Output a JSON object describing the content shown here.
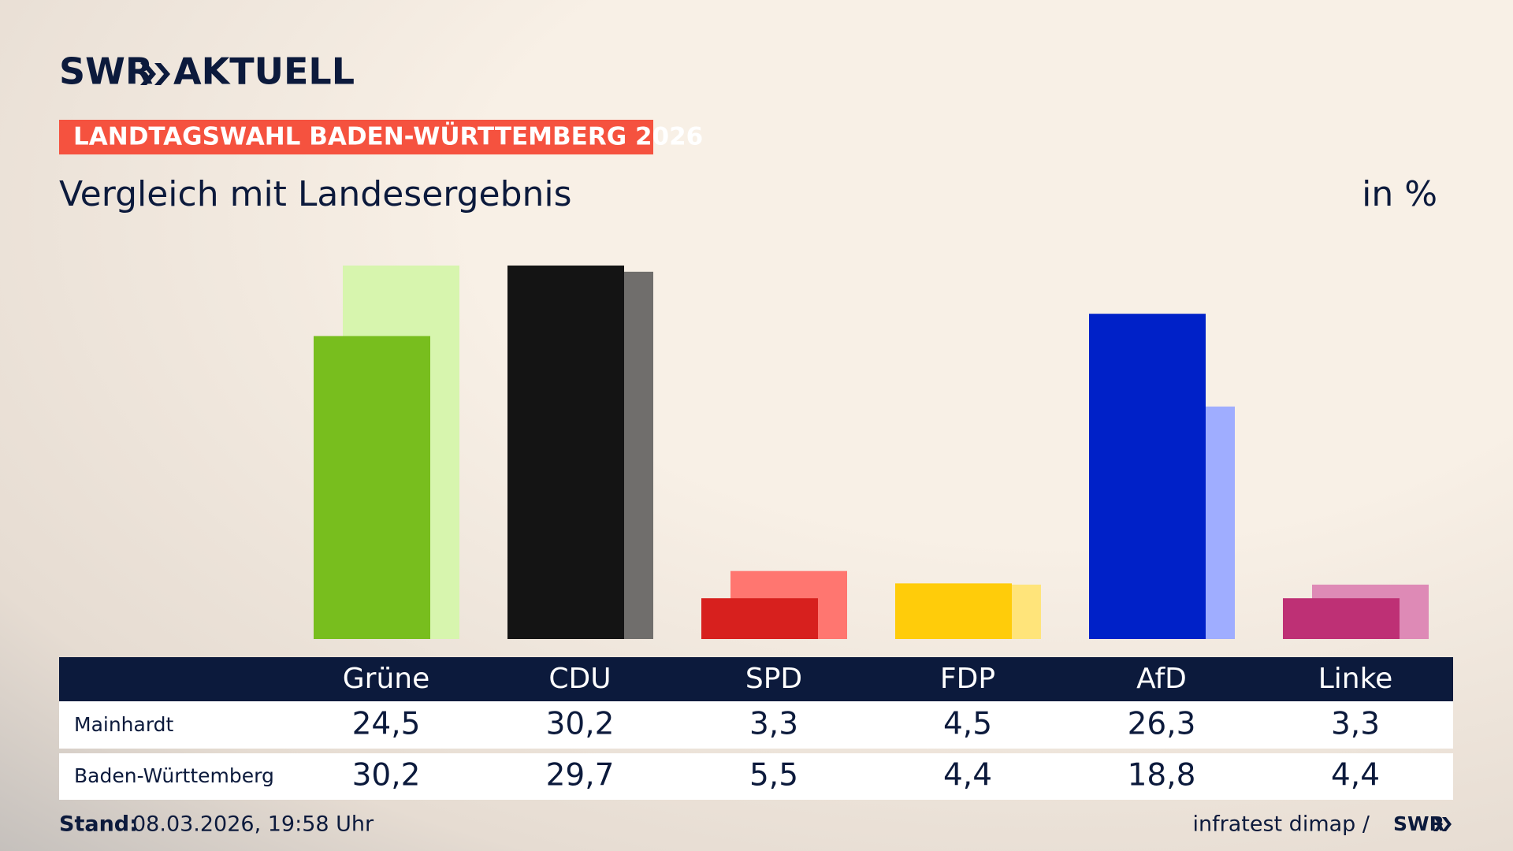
{
  "logo": {
    "brand": "SWR",
    "section": "AKTUELL"
  },
  "chart_data": {
    "type": "bar",
    "header": "LANDTAGSWAHL BADEN-WÜRTTEMBERG 2026",
    "title": "Vergleich mit Landesergebnis",
    "unit": "in %",
    "categories": [
      "Grüne",
      "CDU",
      "SPD",
      "FDP",
      "AfD",
      "Linke"
    ],
    "series": [
      {
        "name": "Mainhardt",
        "colors": [
          "#78be1e",
          "#141414",
          "#d7201e",
          "#ffcc0a",
          "#0021c8",
          "#be3075"
        ],
        "values": [
          24.5,
          30.2,
          3.3,
          4.5,
          26.3,
          3.3
        ],
        "value_labels": [
          "24,5",
          "30,2",
          "3,3",
          "4,5",
          "26,3",
          "3,3"
        ]
      },
      {
        "name": "Baden-Württemberg",
        "colors": [
          "#d7f5ae",
          "#706e6c",
          "#ff7670",
          "#ffe47a",
          "#9fadff",
          "#de8ab6"
        ],
        "values": [
          30.2,
          29.7,
          5.5,
          4.4,
          18.8,
          4.4
        ],
        "value_labels": [
          "30,2",
          "29,7",
          "5,5",
          "4,4",
          "18,8",
          "4,4"
        ]
      }
    ]
  },
  "footer": {
    "stand_label": "Stand:",
    "stand": "08.03.2026, 19:58 Uhr",
    "source": "infratest dimap /",
    "source_brand": "SWR"
  }
}
